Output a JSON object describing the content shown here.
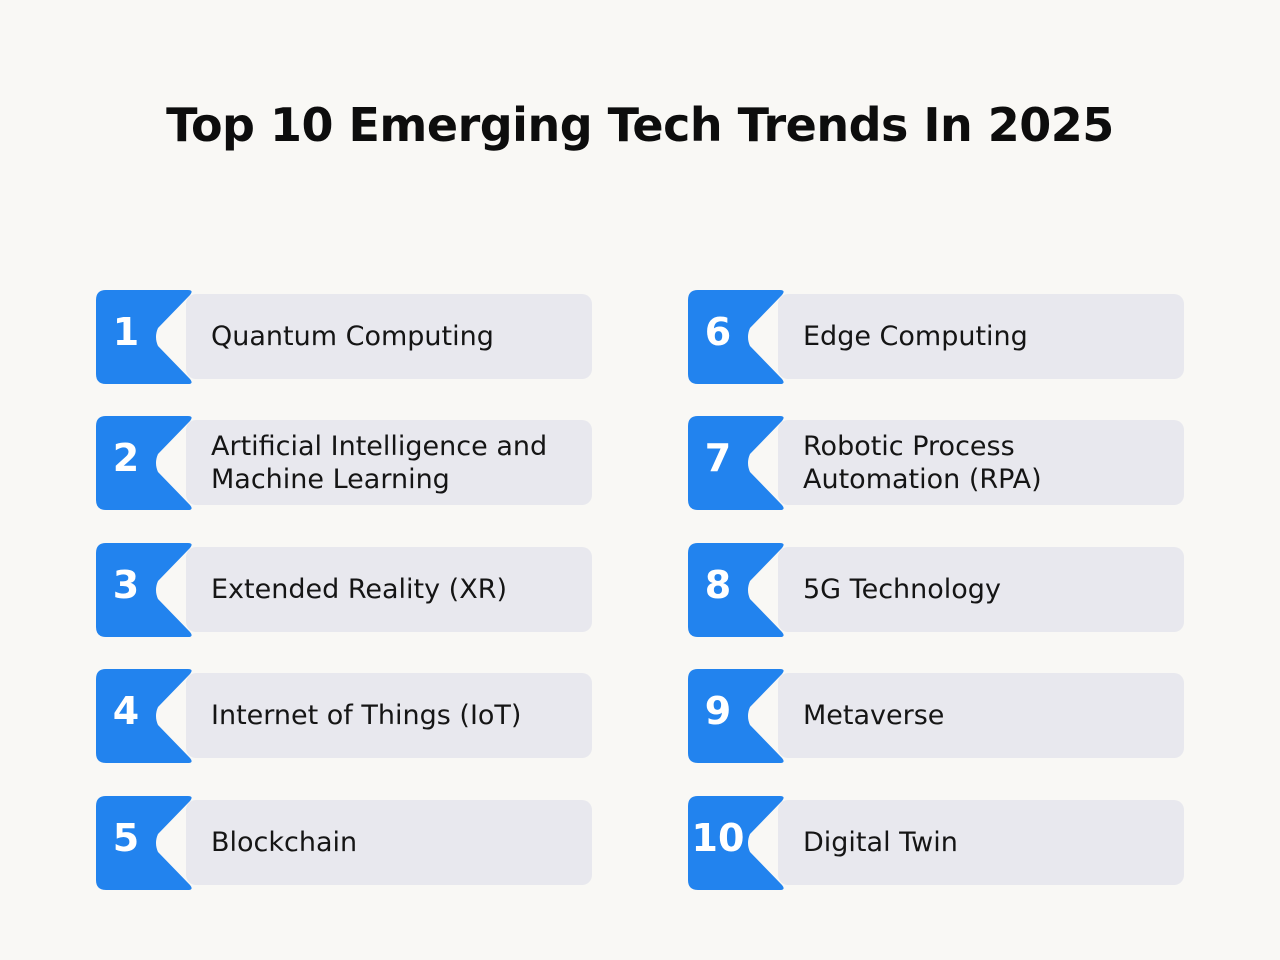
{
  "title": "Top 10 Emerging Tech Trends In 2025",
  "colors": {
    "accent": "#2283ee",
    "bar": "#e8e8ee",
    "background": "#f9f8f5"
  },
  "items": [
    {
      "number": "1",
      "label": "Quantum Computing"
    },
    {
      "number": "2",
      "label": "Artificial Intelligence and Machine Learning"
    },
    {
      "number": "3",
      "label": "Extended Reality (XR)"
    },
    {
      "number": "4",
      "label": "Internet of Things (IoT)"
    },
    {
      "number": "5",
      "label": "Blockchain"
    },
    {
      "number": "6",
      "label": "Edge Computing"
    },
    {
      "number": "7",
      "label": "Robotic Process Automation (RPA)"
    },
    {
      "number": "8",
      "label": "5G Technology"
    },
    {
      "number": "9",
      "label": "Metaverse"
    },
    {
      "number": "10",
      "label": "Digital Twin"
    }
  ]
}
